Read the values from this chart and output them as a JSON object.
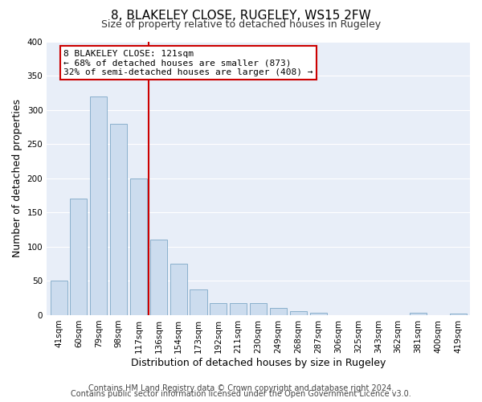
{
  "title": "8, BLAKELEY CLOSE, RUGELEY, WS15 2FW",
  "subtitle": "Size of property relative to detached houses in Rugeley",
  "xlabel": "Distribution of detached houses by size in Rugeley",
  "ylabel": "Number of detached properties",
  "categories": [
    "41sqm",
    "60sqm",
    "79sqm",
    "98sqm",
    "117sqm",
    "136sqm",
    "154sqm",
    "173sqm",
    "192sqm",
    "211sqm",
    "230sqm",
    "249sqm",
    "268sqm",
    "287sqm",
    "306sqm",
    "325sqm",
    "343sqm",
    "362sqm",
    "381sqm",
    "400sqm",
    "419sqm"
  ],
  "values": [
    50,
    170,
    320,
    280,
    200,
    110,
    75,
    38,
    18,
    18,
    18,
    10,
    6,
    4,
    0,
    0,
    0,
    0,
    4,
    0,
    2
  ],
  "bar_color": "#ccdcee",
  "bar_edge_color": "#8ab0cc",
  "vline_x_index": 4,
  "vline_color": "#cc0000",
  "annotation_text": "8 BLAKELEY CLOSE: 121sqm\n← 68% of detached houses are smaller (873)\n32% of semi-detached houses are larger (408) →",
  "annotation_box_facecolor": "#ffffff",
  "annotation_box_edgecolor": "#cc0000",
  "ylim": [
    0,
    400
  ],
  "yticks": [
    0,
    50,
    100,
    150,
    200,
    250,
    300,
    350,
    400
  ],
  "footer1": "Contains HM Land Registry data © Crown copyright and database right 2024.",
  "footer2": "Contains public sector information licensed under the Open Government Licence v3.0.",
  "background_color": "#ffffff",
  "plot_background": "#e8eef8",
  "grid_color": "#ffffff",
  "title_fontsize": 11,
  "subtitle_fontsize": 9,
  "axis_label_fontsize": 9,
  "tick_fontsize": 7.5,
  "annotation_fontsize": 8,
  "footer_fontsize": 7
}
